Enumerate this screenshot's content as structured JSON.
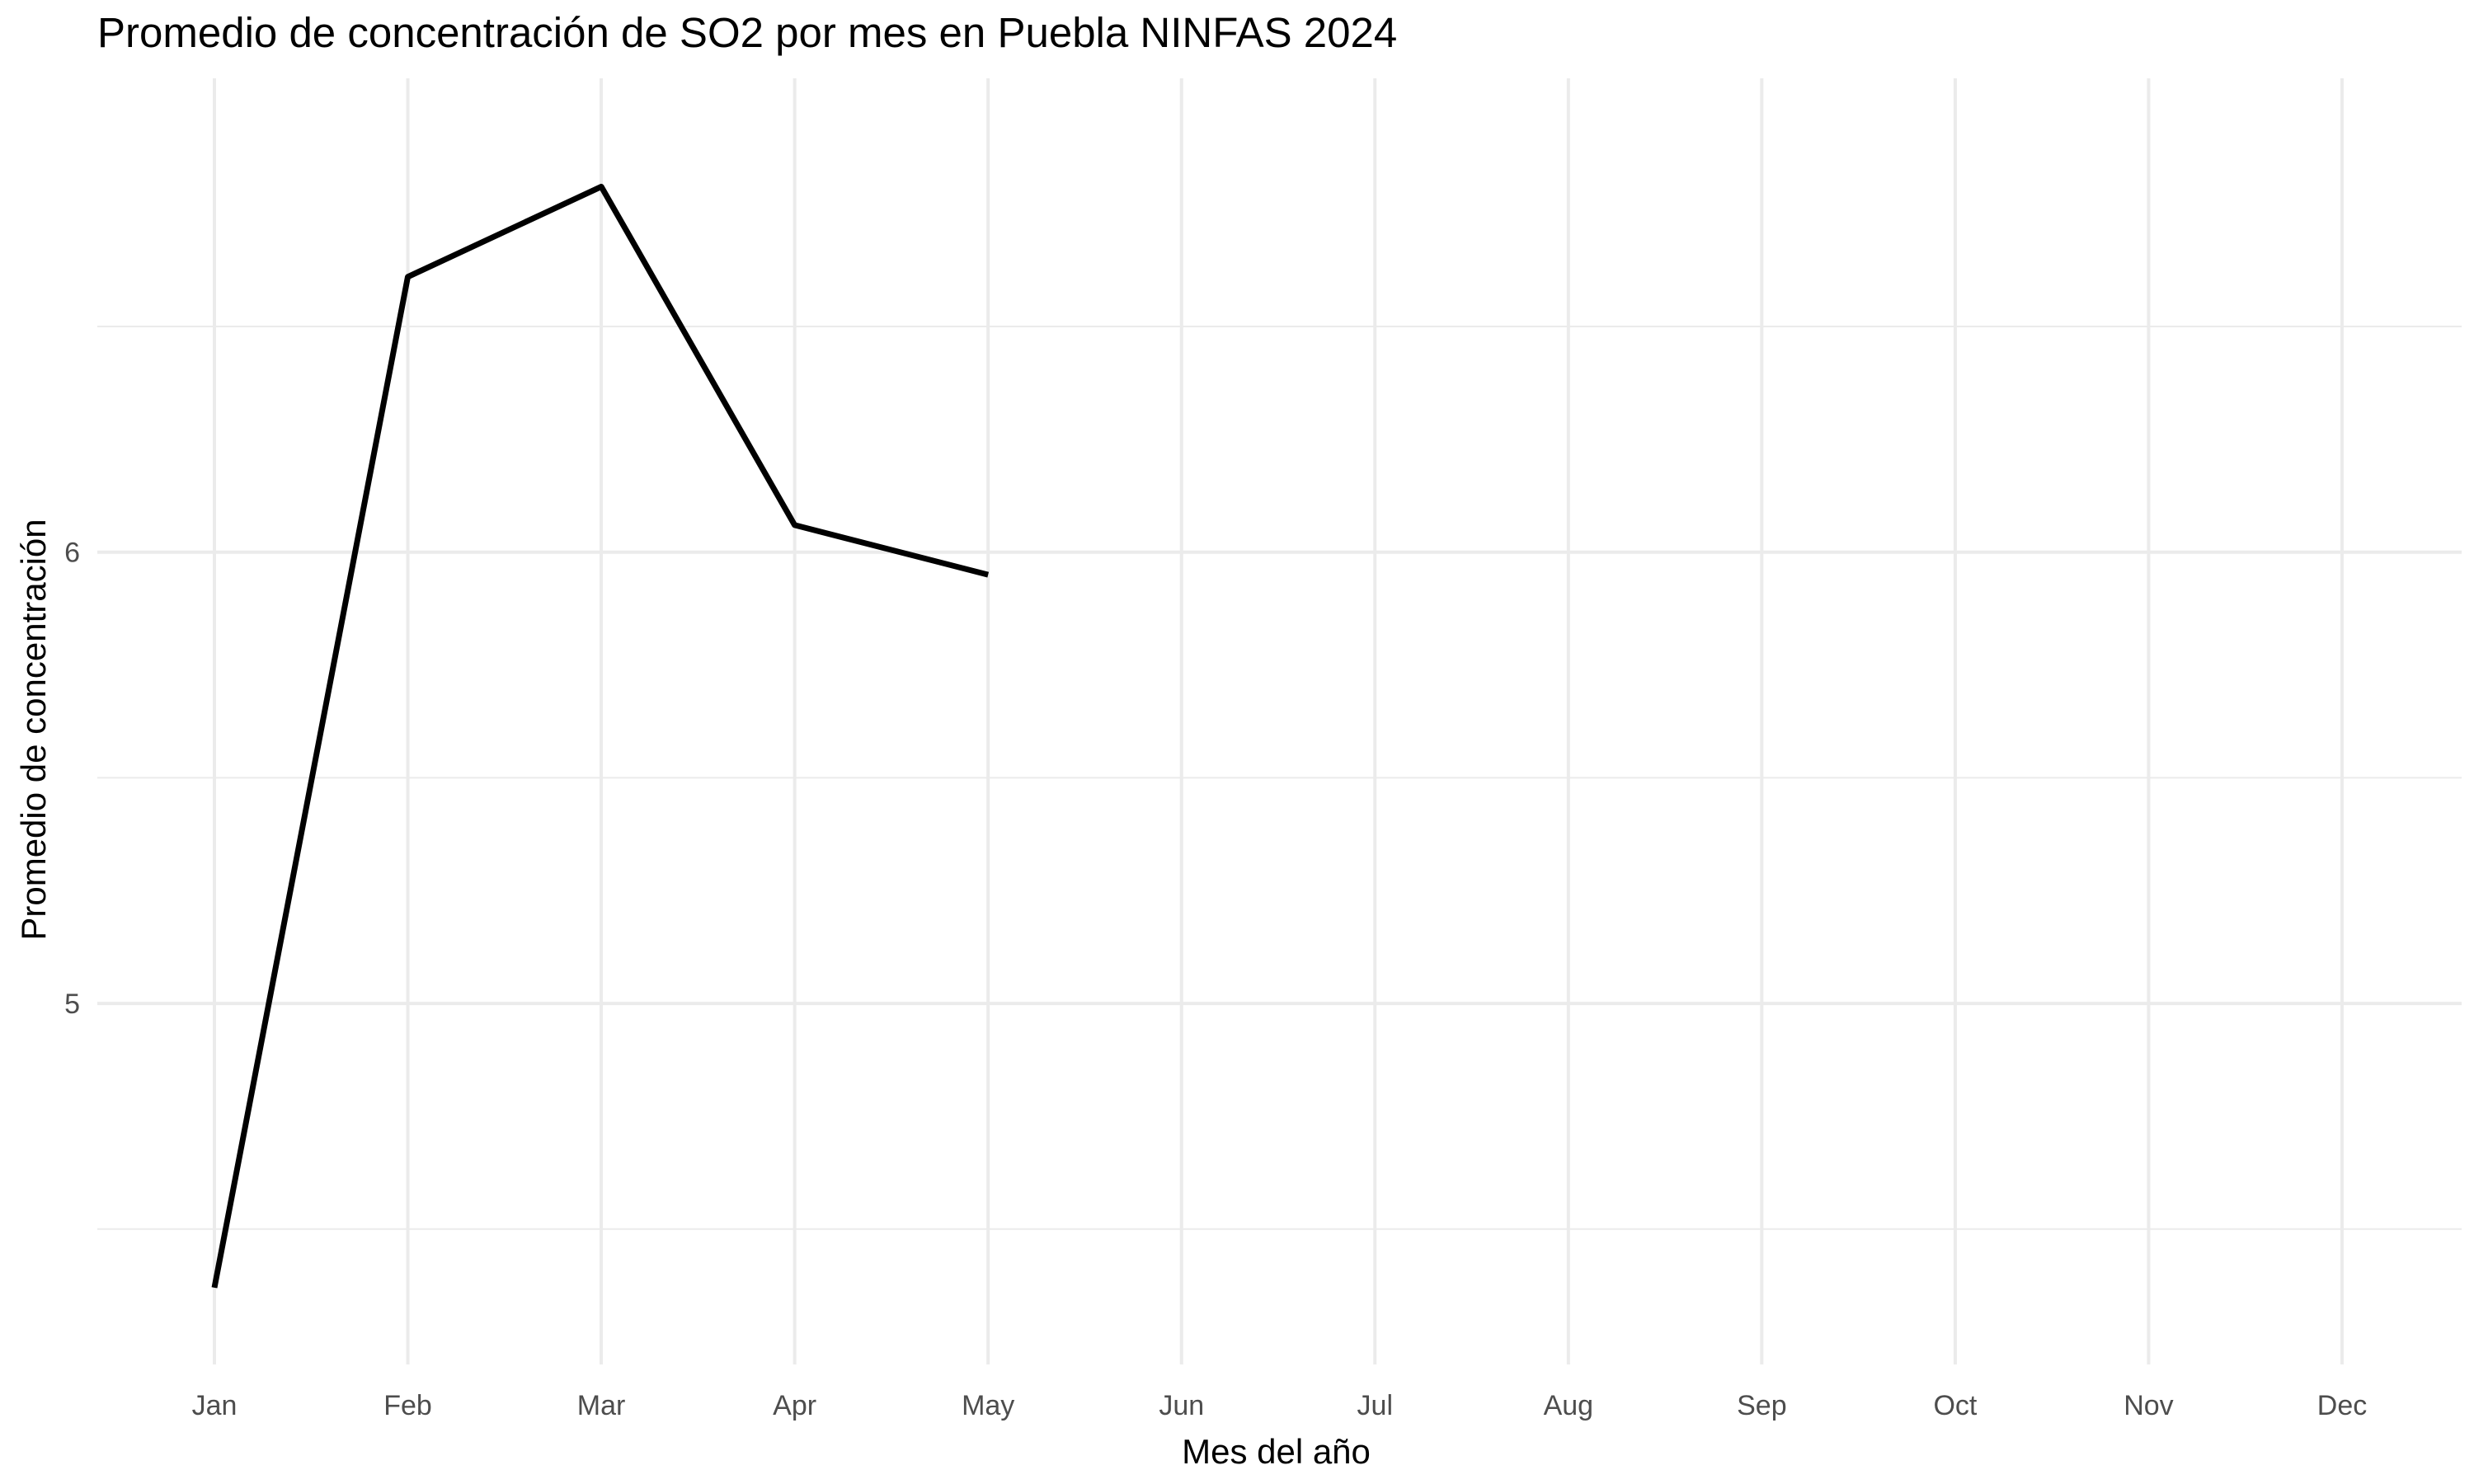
{
  "chart_data": {
    "type": "line",
    "title": "Promedio de concentración de SO2 por mes en Puebla NINFAS 2024",
    "xlabel": "Mes del año",
    "ylabel": "Promedio de concentración",
    "categories": [
      "Jan",
      "Feb",
      "Mar",
      "Apr",
      "May",
      "Jun",
      "Jul",
      "Aug",
      "Sep",
      "Oct",
      "Nov",
      "Dec"
    ],
    "series": [
      {
        "values": [
          4.37,
          6.61,
          6.81,
          6.06,
          5.95,
          null,
          null,
          null,
          null,
          null,
          null,
          null
        ],
        "color": "#000000"
      }
    ],
    "yticks": [
      5,
      6
    ],
    "ylim": [
      4.2,
      7.05
    ],
    "grid": true,
    "legend": "none",
    "colors": {
      "background": "#ffffff",
      "grid": "#ebebeb",
      "line": "#000000",
      "tick_text": "#4d4d4d"
    }
  }
}
